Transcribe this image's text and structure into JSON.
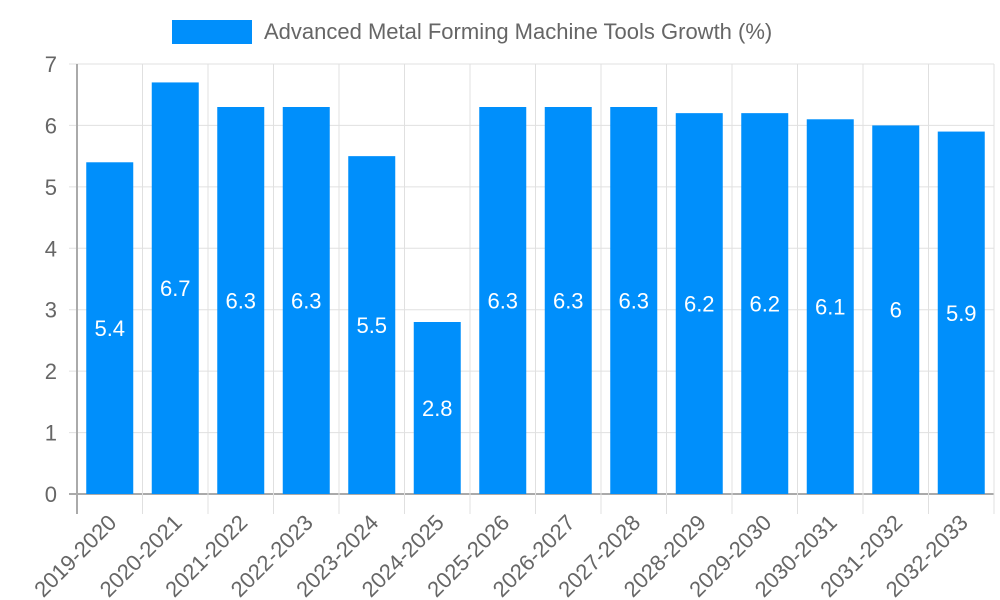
{
  "chart_data": {
    "type": "bar",
    "title": "",
    "legend": {
      "position": "top",
      "entries": [
        "Advanced Metal Forming Machine Tools Growth (%)"
      ]
    },
    "categories": [
      "2019-2020",
      "2020-2021",
      "2021-2022",
      "2022-2023",
      "2023-2024",
      "2024-2025",
      "2025-2026",
      "2026-2027",
      "2027-2028",
      "2028-2029",
      "2029-2030",
      "2030-2031",
      "2031-2032",
      "2032-2033"
    ],
    "series": [
      {
        "name": "Advanced Metal Forming Machine Tools Growth (%)",
        "color": "#008ffb",
        "values": [
          5.4,
          6.7,
          6.3,
          6.3,
          5.5,
          2.8,
          6.3,
          6.3,
          6.3,
          6.2,
          6.2,
          6.1,
          6,
          5.9
        ]
      }
    ],
    "data_labels": [
      "5.4",
      "6.7",
      "6.3",
      "6.3",
      "5.5",
      "2.8",
      "6.3",
      "6.3",
      "6.3",
      "6.2",
      "6.2",
      "6.1",
      "6",
      "5.9"
    ],
    "xlabel": "",
    "ylabel": "",
    "ylim": [
      0,
      7
    ],
    "yticks": [
      0,
      1,
      2,
      3,
      4,
      5,
      6,
      7
    ],
    "grid": true,
    "x_tick_rotation": -45
  },
  "legend": {
    "label": "Advanced Metal Forming Machine Tools Growth (%)"
  }
}
